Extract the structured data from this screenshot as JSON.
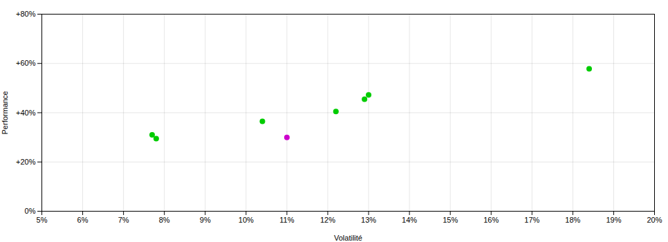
{
  "chart_data": {
    "type": "scatter",
    "xlabel": "Volatilité",
    "ylabel": "Performance",
    "xlim": [
      0.05,
      0.2
    ],
    "ylim": [
      0.0,
      0.8
    ],
    "xticks": [
      {
        "value": 0.05,
        "label": "5%"
      },
      {
        "value": 0.06,
        "label": "6%"
      },
      {
        "value": 0.07,
        "label": "7%"
      },
      {
        "value": 0.08,
        "label": "8%"
      },
      {
        "value": 0.09,
        "label": "9%"
      },
      {
        "value": 0.1,
        "label": "10%"
      },
      {
        "value": 0.11,
        "label": "11%"
      },
      {
        "value": 0.12,
        "label": "12%"
      },
      {
        "value": 0.13,
        "label": "13%"
      },
      {
        "value": 0.14,
        "label": "14%"
      },
      {
        "value": 0.15,
        "label": "15%"
      },
      {
        "value": 0.16,
        "label": "16%"
      },
      {
        "value": 0.17,
        "label": "17%"
      },
      {
        "value": 0.18,
        "label": "18%"
      },
      {
        "value": 0.19,
        "label": "19%"
      },
      {
        "value": 0.2,
        "label": "20%"
      }
    ],
    "yticks": [
      {
        "value": 0.0,
        "label": "0%"
      },
      {
        "value": 0.2,
        "label": "+20%"
      },
      {
        "value": 0.4,
        "label": "+40%"
      },
      {
        "value": 0.6,
        "label": "+60%"
      },
      {
        "value": 0.8,
        "label": "+80%"
      }
    ],
    "grid": true,
    "series": [
      {
        "color": "#00cc00",
        "x": [
          0.077,
          0.078,
          0.104,
          0.122,
          0.129,
          0.13,
          0.184
        ],
        "values": [
          0.31,
          0.295,
          0.365,
          0.405,
          0.455,
          0.472,
          0.578
        ]
      },
      {
        "color": "#cc00cc",
        "x": [
          0.11
        ],
        "values": [
          0.3
        ]
      }
    ]
  }
}
